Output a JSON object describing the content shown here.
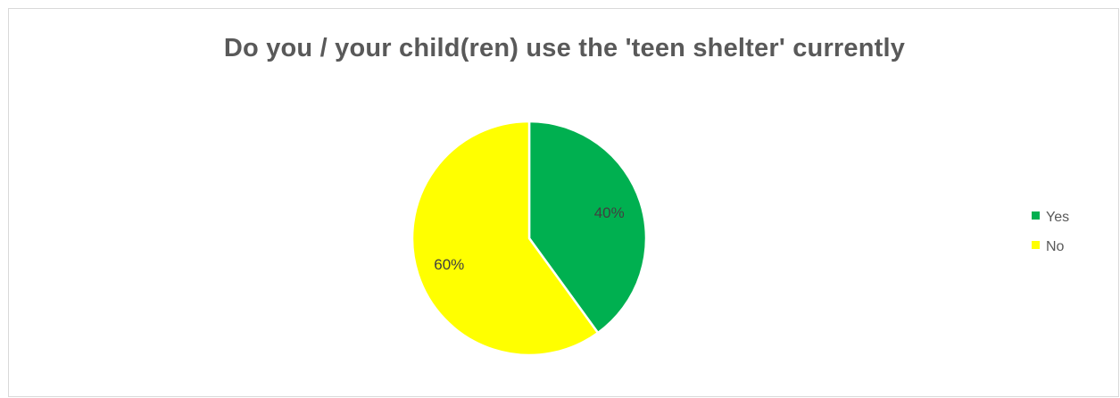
{
  "chart_data": {
    "type": "pie",
    "title": "Do you / your child(ren) use the 'teen shelter' currently",
    "categories": [
      "Yes",
      "No"
    ],
    "values": [
      40,
      60
    ],
    "data_labels": [
      "40%",
      "60%"
    ],
    "colors": [
      "#00b050",
      "#ffff00"
    ],
    "legend_placement": "right",
    "start_angle_deg": 0,
    "direction": "clockwise"
  }
}
